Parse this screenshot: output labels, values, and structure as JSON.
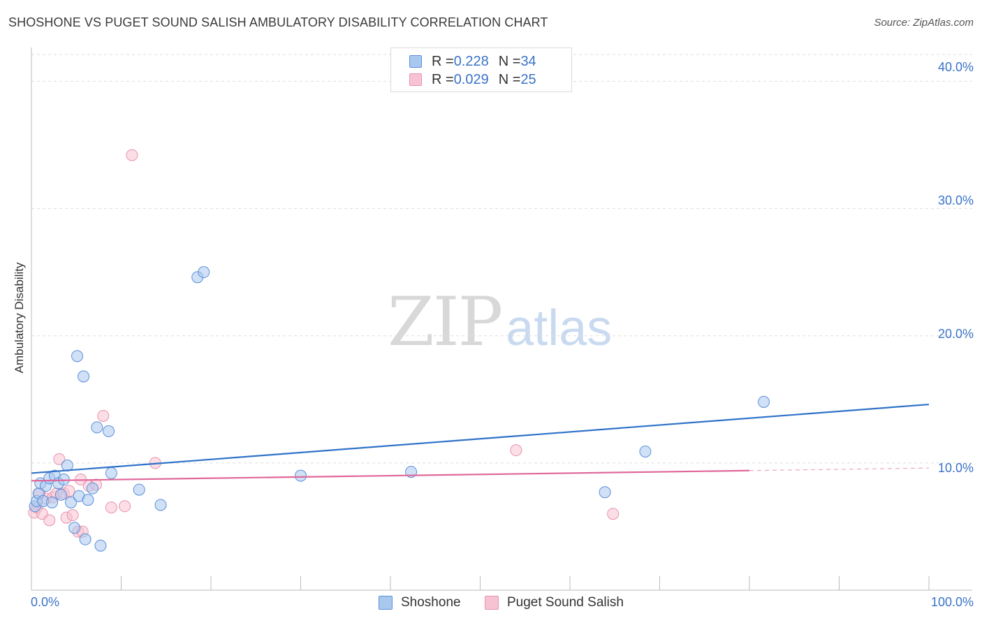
{
  "header": {
    "title": "SHOSHONE VS PUGET SOUND SALISH AMBULATORY DISABILITY CORRELATION CHART",
    "source": "Source: ZipAtlas.com"
  },
  "watermark": {
    "zip": "ZIP",
    "atlas": "atlas"
  },
  "legend": {
    "rows": [
      {
        "r_label": "R = ",
        "r_value": "0.228",
        "n_label": "N = ",
        "n_value": "34"
      },
      {
        "r_label": "R = ",
        "r_value": "0.029",
        "n_label": "N = ",
        "n_value": "25"
      }
    ]
  },
  "colors": {
    "shoshone_fill": "#a9c8f0",
    "shoshone_stroke": "#5b8fd6",
    "shoshone_line": "#2f72c9",
    "salish_fill": "#f7c3d2",
    "salish_stroke": "#e893ae",
    "salish_line": "#e0689a",
    "tick_text": "#3a73c7",
    "grid": "#dedede"
  },
  "chart_data": {
    "type": "scatter",
    "title": "SHOSHONE VS PUGET SOUND SALISH AMBULATORY DISABILITY CORRELATION CHART",
    "xlabel": "",
    "ylabel": "Ambulatory Disability",
    "xlim": [
      0,
      100
    ],
    "ylim": [
      0,
      42
    ],
    "x_tick_labels": [
      "0.0%",
      "100.0%"
    ],
    "y_ticks": [
      10,
      20,
      30,
      40
    ],
    "y_tick_labels": [
      "10.0%",
      "20.0%",
      "30.0%",
      "40.0%"
    ],
    "grid": true,
    "legend_position": "top-center",
    "series": [
      {
        "name": "Shoshone",
        "r": 0.228,
        "n": 34,
        "trend": {
          "x": [
            0,
            100
          ],
          "y": [
            9.2,
            14.6
          ]
        },
        "points": [
          [
            0.4,
            6.6
          ],
          [
            0.6,
            7.0
          ],
          [
            0.8,
            7.6
          ],
          [
            1.0,
            8.4
          ],
          [
            1.3,
            7.0
          ],
          [
            1.6,
            8.2
          ],
          [
            2.0,
            8.8
          ],
          [
            2.3,
            6.9
          ],
          [
            2.6,
            9.0
          ],
          [
            3.0,
            8.4
          ],
          [
            3.3,
            7.5
          ],
          [
            3.6,
            8.7
          ],
          [
            4.0,
            9.8
          ],
          [
            4.4,
            6.9
          ],
          [
            4.8,
            4.9
          ],
          [
            5.1,
            18.4
          ],
          [
            5.3,
            7.4
          ],
          [
            5.8,
            16.8
          ],
          [
            6.0,
            4.0
          ],
          [
            6.3,
            7.1
          ],
          [
            6.8,
            8.0
          ],
          [
            7.3,
            12.8
          ],
          [
            7.7,
            3.5
          ],
          [
            8.6,
            12.5
          ],
          [
            8.9,
            9.2
          ],
          [
            12.0,
            7.9
          ],
          [
            14.4,
            6.7
          ],
          [
            18.5,
            24.6
          ],
          [
            19.2,
            25.0
          ],
          [
            30.0,
            9.0
          ],
          [
            42.3,
            9.3
          ],
          [
            63.9,
            7.7
          ],
          [
            68.4,
            10.9
          ],
          [
            81.6,
            14.8
          ]
        ]
      },
      {
        "name": "Puget Sound Salish",
        "r": 0.029,
        "n": 25,
        "trend": {
          "x": [
            0,
            80
          ],
          "y": [
            8.6,
            9.4
          ]
        },
        "trend_dashed": {
          "x": [
            80,
            100
          ],
          "y": [
            9.4,
            9.6
          ]
        },
        "points": [
          [
            0.3,
            6.1
          ],
          [
            0.6,
            6.5
          ],
          [
            0.9,
            7.6
          ],
          [
            1.2,
            6.0
          ],
          [
            1.6,
            7.2
          ],
          [
            2.0,
            5.5
          ],
          [
            2.4,
            7.3
          ],
          [
            2.8,
            7.6
          ],
          [
            3.1,
            10.3
          ],
          [
            3.6,
            7.6
          ],
          [
            3.9,
            5.7
          ],
          [
            4.2,
            7.8
          ],
          [
            4.6,
            5.9
          ],
          [
            5.2,
            4.6
          ],
          [
            5.5,
            8.7
          ],
          [
            5.7,
            4.6
          ],
          [
            6.4,
            8.2
          ],
          [
            7.2,
            8.3
          ],
          [
            8.0,
            13.7
          ],
          [
            8.9,
            6.5
          ],
          [
            10.4,
            6.6
          ],
          [
            11.2,
            34.2
          ],
          [
            13.8,
            10.0
          ],
          [
            54.0,
            11.0
          ],
          [
            64.8,
            6.0
          ]
        ]
      }
    ]
  }
}
